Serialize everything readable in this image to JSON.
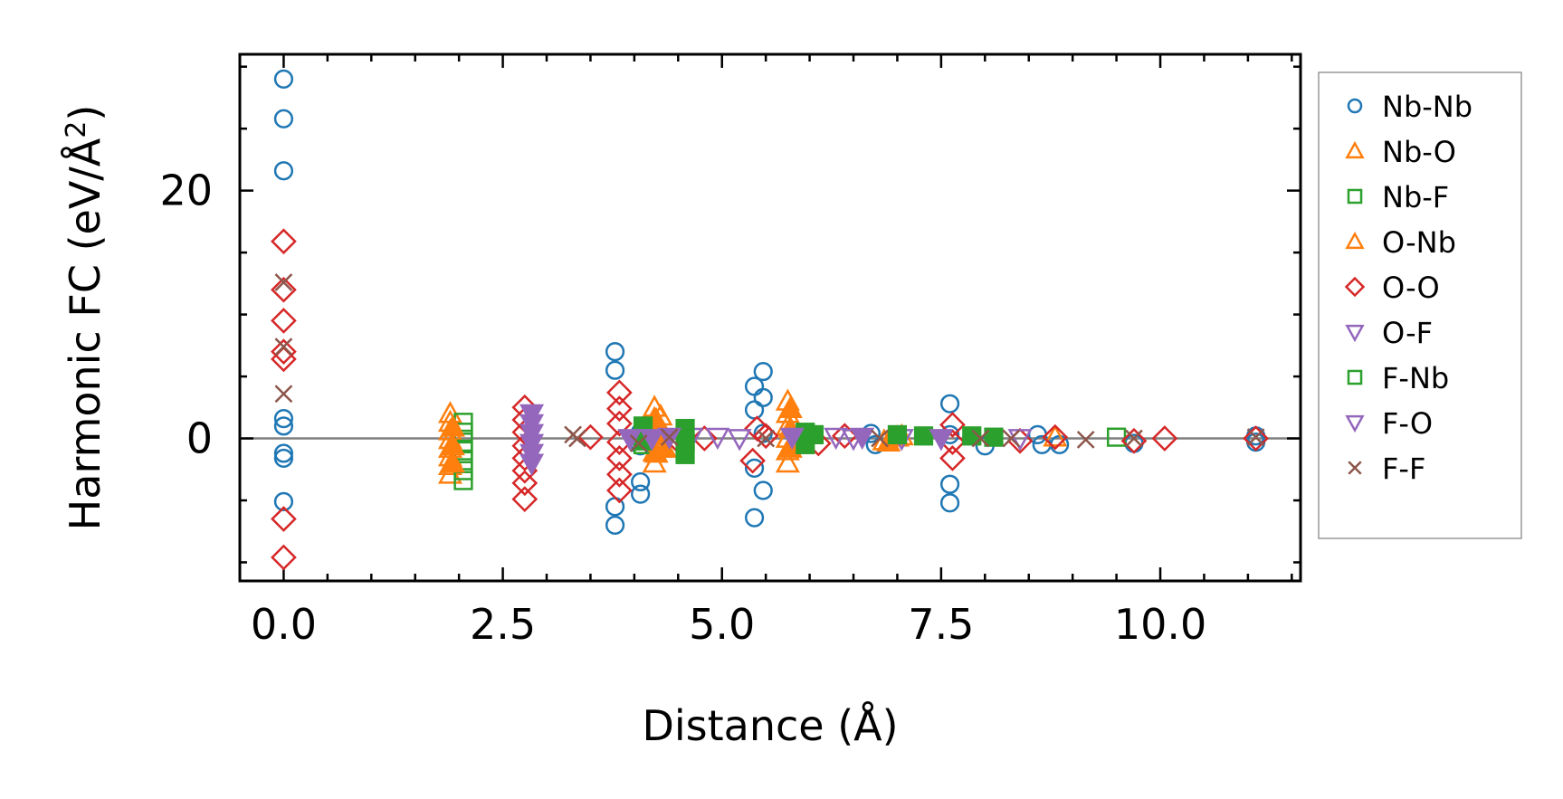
{
  "chart_data": {
    "type": "scatter",
    "xlabel": "Distance (Å)",
    "ylabel_main": "Harmonic FC (eV/Å",
    "ylabel_sup": "2",
    "ylabel_close": ")",
    "xlim": [
      -0.5,
      11.6
    ],
    "ylim": [
      -11.5,
      31
    ],
    "xticks": [
      0.0,
      2.5,
      5.0,
      7.5,
      10.0
    ],
    "xtick_labels": [
      "0.0",
      "2.5",
      "5.0",
      "7.5",
      "10.0"
    ],
    "yticks": [
      0,
      20
    ],
    "ytick_labels": [
      "0",
      "20"
    ],
    "reference_line_y": 0,
    "legend_position": "right, outside",
    "series": [
      {
        "name": "Nb-Nb",
        "marker": "circle",
        "filled": false,
        "color": "#1f77b4",
        "points": [
          [
            0,
            29
          ],
          [
            0,
            25.8
          ],
          [
            0,
            21.6
          ],
          [
            0,
            1.6
          ],
          [
            0,
            1.0
          ],
          [
            0,
            -1.2
          ],
          [
            0,
            -1.6
          ],
          [
            0,
            -5.1
          ],
          [
            3.78,
            7.0
          ],
          [
            3.78,
            5.5
          ],
          [
            3.78,
            -5.5
          ],
          [
            3.78,
            -7.0
          ],
          [
            4.07,
            -3.5
          ],
          [
            4.07,
            -4.5
          ],
          [
            4.07,
            0.5
          ],
          [
            4.07,
            -0.6
          ],
          [
            5.37,
            4.2
          ],
          [
            5.37,
            2.3
          ],
          [
            5.37,
            -2.4
          ],
          [
            5.37,
            -6.4
          ],
          [
            5.47,
            5.4
          ],
          [
            5.47,
            3.3
          ],
          [
            5.47,
            -4.2
          ],
          [
            5.47,
            0.4
          ],
          [
            6.7,
            0.4
          ],
          [
            6.75,
            -0.5
          ],
          [
            7.6,
            2.8
          ],
          [
            7.6,
            -3.7
          ],
          [
            7.6,
            -5.2
          ],
          [
            7.6,
            0.3
          ],
          [
            8.0,
            -0.6
          ],
          [
            8.6,
            0.3
          ],
          [
            8.65,
            -0.5
          ],
          [
            8.85,
            -0.5
          ],
          [
            9.7,
            -0.4
          ],
          [
            11.09,
            -0.3
          ],
          [
            11.09,
            0.2
          ]
        ]
      },
      {
        "name": "Nb-O",
        "marker": "triangle-up",
        "filled": false,
        "color": "#ff7f0e",
        "points": [
          [
            1.9,
            2.0
          ],
          [
            1.9,
            1.3
          ],
          [
            1.9,
            0.6
          ],
          [
            1.9,
            -0.1
          ],
          [
            1.9,
            -0.8
          ],
          [
            1.9,
            -1.5
          ],
          [
            1.9,
            -2.2
          ],
          [
            1.9,
            -2.9
          ],
          [
            4.23,
            2.5
          ],
          [
            4.23,
            1.6
          ],
          [
            4.23,
            0.7
          ],
          [
            4.23,
            -0.2
          ],
          [
            4.23,
            -1.1
          ],
          [
            4.23,
            -2.0
          ],
          [
            4.3,
            1.8
          ],
          [
            4.3,
            -0.8
          ],
          [
            5.75,
            3.0
          ],
          [
            5.75,
            2.0
          ],
          [
            5.75,
            1.0
          ],
          [
            5.75,
            0.0
          ],
          [
            5.75,
            -1.0
          ],
          [
            5.75,
            -2.0
          ],
          [
            6.85,
            -0.2
          ],
          [
            7.05,
            0.2
          ],
          [
            8.8,
            0.1
          ]
        ]
      },
      {
        "name": "Nb-F",
        "marker": "square",
        "filled": false,
        "color": "#2ca02c",
        "points": [
          [
            2.05,
            1.3
          ],
          [
            2.05,
            0.5
          ],
          [
            2.05,
            -0.3
          ],
          [
            2.05,
            -1.0
          ],
          [
            2.05,
            -1.8
          ],
          [
            2.05,
            -2.6
          ],
          [
            2.05,
            -3.4
          ],
          [
            4.1,
            0.4
          ],
          [
            4.1,
            -0.5
          ],
          [
            9.5,
            0.1
          ]
        ]
      },
      {
        "name": "O-Nb",
        "marker": "triangle-up",
        "filled": true,
        "color": "#ff7f0e",
        "points": [
          [
            1.93,
            0.9
          ],
          [
            1.93,
            -0.6
          ],
          [
            1.93,
            -2.0
          ],
          [
            4.25,
            1.5
          ],
          [
            4.25,
            0.2
          ],
          [
            4.25,
            -1.2
          ],
          [
            4.35,
            -0.8
          ],
          [
            5.78,
            2.4
          ],
          [
            5.78,
            0.8
          ],
          [
            5.78,
            -0.8
          ],
          [
            6.9,
            -0.3
          ],
          [
            7.0,
            0.1
          ]
        ]
      },
      {
        "name": "O-O",
        "marker": "diamond",
        "filled": false,
        "color": "#d62728",
        "points": [
          [
            0,
            15.9
          ],
          [
            0,
            12.0
          ],
          [
            0,
            9.5
          ],
          [
            0,
            7.0
          ],
          [
            0,
            6.4
          ],
          [
            0,
            -6.5
          ],
          [
            0,
            -9.6
          ],
          [
            2.75,
            2.5
          ],
          [
            2.75,
            1.5
          ],
          [
            2.75,
            0.5
          ],
          [
            2.75,
            -0.6
          ],
          [
            2.75,
            -1.6
          ],
          [
            2.75,
            -2.6
          ],
          [
            2.75,
            -3.6
          ],
          [
            2.75,
            -4.9
          ],
          [
            3.5,
            0.1
          ],
          [
            3.83,
            3.7
          ],
          [
            3.83,
            2.4
          ],
          [
            3.83,
            1.2
          ],
          [
            3.83,
            -0.3
          ],
          [
            3.83,
            -1.6
          ],
          [
            3.83,
            -2.9
          ],
          [
            3.83,
            -4.2
          ],
          [
            4.5,
            -0.2
          ],
          [
            4.8,
            0.0
          ],
          [
            5.35,
            -1.8
          ],
          [
            5.4,
            0.8
          ],
          [
            5.5,
            0.2
          ],
          [
            6.1,
            -0.4
          ],
          [
            6.4,
            0.2
          ],
          [
            7.63,
            1.1
          ],
          [
            7.63,
            -0.3
          ],
          [
            7.63,
            -1.6
          ],
          [
            8.4,
            -0.2
          ],
          [
            8.8,
            0.1
          ],
          [
            9.7,
            -0.2
          ],
          [
            10.05,
            0.0
          ],
          [
            11.09,
            0.0
          ]
        ]
      },
      {
        "name": "O-F",
        "marker": "triangle-down",
        "filled": false,
        "color": "#9467bd",
        "points": [
          [
            4.65,
            0.1
          ],
          [
            4.95,
            0.1
          ],
          [
            5.2,
            0.0
          ],
          [
            5.9,
            0.1
          ],
          [
            6.3,
            0.1
          ],
          [
            6.5,
            0.0
          ],
          [
            7.05,
            0.0
          ],
          [
            8.4,
            0.0
          ]
        ]
      },
      {
        "name": "F-Nb",
        "marker": "square",
        "filled": true,
        "color": "#2ca02c",
        "points": [
          [
            4.1,
            1.0
          ],
          [
            4.1,
            -0.2
          ],
          [
            4.58,
            0.8
          ],
          [
            4.58,
            -0.3
          ],
          [
            4.58,
            -1.3
          ],
          [
            5.95,
            0.5
          ],
          [
            5.95,
            -0.5
          ],
          [
            6.05,
            0.3
          ],
          [
            7.0,
            0.3
          ],
          [
            7.3,
            0.2
          ],
          [
            7.85,
            0.2
          ],
          [
            8.1,
            0.1
          ]
        ]
      },
      {
        "name": "F-O",
        "marker": "triangle-down",
        "filled": true,
        "color": "#9467bd",
        "points": [
          [
            2.83,
            2.0
          ],
          [
            2.83,
            1.2
          ],
          [
            2.83,
            0.4
          ],
          [
            2.83,
            -0.4
          ],
          [
            2.83,
            -1.2
          ],
          [
            2.83,
            -2.0
          ],
          [
            3.95,
            0.0
          ],
          [
            4.2,
            0.0
          ],
          [
            4.4,
            0.1
          ],
          [
            5.8,
            0.1
          ],
          [
            6.6,
            0.1
          ],
          [
            7.5,
            0.0
          ]
        ]
      },
      {
        "name": "F-F",
        "marker": "x",
        "filled": false,
        "color": "#8c564b",
        "points": [
          [
            0,
            12.6
          ],
          [
            0,
            7.4
          ],
          [
            0,
            3.6
          ],
          [
            3.3,
            0.3
          ],
          [
            3.35,
            0.0
          ],
          [
            4.05,
            -0.4
          ],
          [
            4.4,
            0.1
          ],
          [
            5.5,
            0.0
          ],
          [
            6.8,
            0.0
          ],
          [
            7.95,
            0.0
          ],
          [
            8.3,
            0.0
          ],
          [
            9.15,
            -0.1
          ],
          [
            9.7,
            0.0
          ],
          [
            11.09,
            0.1
          ]
        ]
      }
    ]
  }
}
